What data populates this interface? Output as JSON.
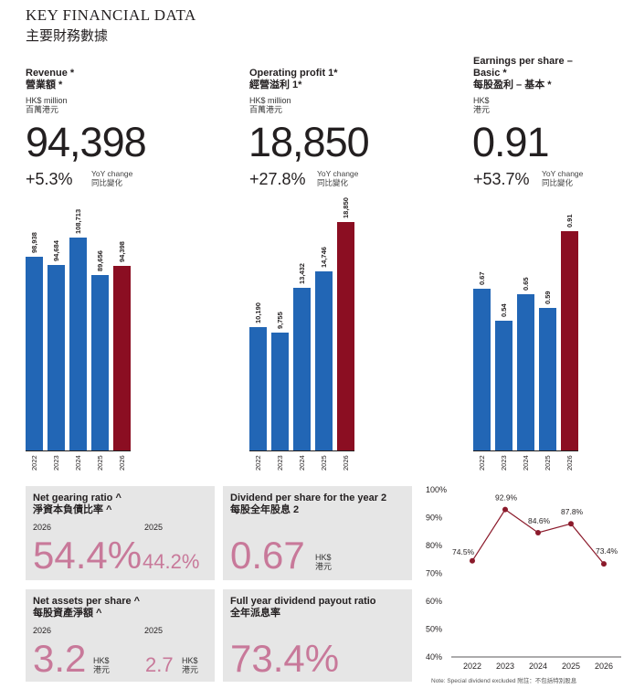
{
  "header": {
    "title_en": "KEY FINANCIAL DATA",
    "title_zh": "主要財務數據"
  },
  "metrics": [
    {
      "label_en": "Revenue *",
      "label_zh": "營業額 *",
      "unit_en": "HK$ million",
      "unit_zh": "百萬港元",
      "value": "94,398",
      "yoy": "+5.3%",
      "yoy_label_en": "YoY change",
      "yoy_label_zh": "同比變化"
    },
    {
      "label_en": "Operating profit 1*",
      "label_zh": "經營溢利 1*",
      "unit_en": "HK$ million",
      "unit_zh": "百萬港元",
      "value": "18,850",
      "yoy": "+27.8%",
      "yoy_label_en": "YoY change",
      "yoy_label_zh": "同比變化"
    },
    {
      "label_en": "Earnings per share –",
      "label_en2": "Basic *",
      "label_zh": "每股盈利 – 基本 *",
      "unit_en": "HK$",
      "unit_zh": "港元",
      "value": "0.91",
      "yoy": "+53.7%",
      "yoy_label_en": "YoY change",
      "yoy_label_zh": "同比變化"
    }
  ],
  "boxes": {
    "gearing": {
      "title_en": "Net gearing ratio ^",
      "title_zh": "淨資本負債比率 ^",
      "y1": "2026",
      "y2": "2025",
      "v1": "54.4%",
      "v2": "44.2%"
    },
    "dps": {
      "title_en": "Dividend per share for the year 2",
      "title_zh": "每股全年股息 2",
      "value": "0.67",
      "unit_en": "HK$",
      "unit_zh": "港元"
    },
    "nav": {
      "title_en": "Net assets per share ^",
      "title_zh": "每股資產淨額 ^",
      "y1": "2026",
      "y2": "2025",
      "v1": "3.2",
      "v2": "2.7",
      "unit_en": "HK$",
      "unit_zh": "港元"
    },
    "payout": {
      "title_en": "Full year dividend payout ratio",
      "title_zh": "全年派息率",
      "value": "73.4%"
    }
  },
  "colors": {
    "blue": "#2266b5",
    "red": "#8b0e22",
    "pink": "#c8799a",
    "line": "#8b1a2b",
    "box": "#e6e6e6"
  },
  "chart_data": [
    {
      "type": "bar",
      "title": "Revenue *",
      "categories": [
        "2022",
        "2023",
        "2024",
        "2025",
        "2026"
      ],
      "values": [
        98938,
        94684,
        108713,
        89656,
        94398
      ],
      "labels": [
        "98,938",
        "94,684",
        "108,713",
        "89,656",
        "94,398"
      ]
    },
    {
      "type": "bar",
      "title": "Operating profit 1*",
      "categories": [
        "2022",
        "2023",
        "2024",
        "2025",
        "2026"
      ],
      "values": [
        10190,
        9755,
        13432,
        14746,
        18850
      ],
      "labels": [
        "10,190",
        "9,755",
        "13,432",
        "14,746",
        "18,850"
      ]
    },
    {
      "type": "bar",
      "title": "Earnings per share – Basic *",
      "categories": [
        "2022",
        "2023",
        "2024",
        "2025",
        "2026"
      ],
      "values": [
        0.67,
        0.54,
        0.65,
        0.59,
        0.91
      ],
      "labels": [
        "0.67",
        "0.54",
        "0.65",
        "0.59",
        "0.91"
      ]
    },
    {
      "type": "line",
      "categories": [
        "2022",
        "2023",
        "2024",
        "2025",
        "2026"
      ],
      "values": [
        74.5,
        92.9,
        84.6,
        87.8,
        73.4
      ],
      "labels": [
        "74.5%",
        "92.9%",
        "84.6%",
        "87.8%",
        "73.4%"
      ],
      "ylim": [
        40,
        100
      ],
      "yticks": [
        "40%",
        "50%",
        "60%",
        "70%",
        "80%",
        "90%",
        "100%"
      ],
      "note": "Note: Special dividend excluded   附註：不包括特別股息"
    }
  ]
}
